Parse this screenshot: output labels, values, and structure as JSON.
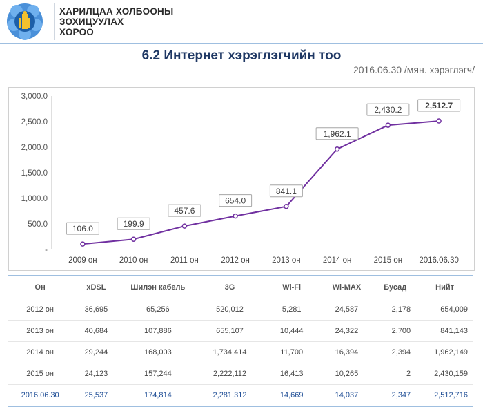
{
  "header": {
    "org_lines": [
      "ХАРИЛЦАА ХОЛБООНЫ",
      "ЗОХИЦУУЛАХ",
      "ХОРОО"
    ]
  },
  "title": "6.2 Интернет хэрэглэгчийн тоо",
  "subtitle": "2016.06.30 /мян. хэрэглэгч/",
  "colors": {
    "line": "#7030a0",
    "title": "#1f3864",
    "rule": "#9fbfe0",
    "last_row": "#1f4e96"
  },
  "chart_data": {
    "type": "line",
    "categories": [
      "2009 он",
      "2010 он",
      "2011 он",
      "2012 он",
      "2013 он",
      "2014 он",
      "2015 он",
      "2016.06.30"
    ],
    "values": [
      106.0,
      199.9,
      457.6,
      654.0,
      841.1,
      1962.1,
      2430.2,
      2512.7
    ],
    "labels": [
      "106.0",
      "199.9",
      "457.6",
      "654.0",
      "841.1",
      "1,962.1",
      "2,430.2",
      "2,512.7"
    ],
    "yticks": [
      "3,000.0",
      "2,500.0",
      "2,000.0",
      "1,500.0",
      "1,000.0",
      "500.0",
      "-"
    ],
    "ytick_values": [
      3000,
      2500,
      2000,
      1500,
      1000,
      500,
      0
    ],
    "ylim": [
      0,
      3000
    ],
    "grid": false
  },
  "table": {
    "headers": [
      "Он",
      "xDSL",
      "Шилэн кабель",
      "3G",
      "Wi-Fi",
      "Wi-MAX",
      "Бусад",
      "Нийт"
    ],
    "rows": [
      [
        "2012 он",
        "36,695",
        "65,256",
        "520,012",
        "5,281",
        "24,587",
        "2,178",
        "654,009"
      ],
      [
        "2013 он",
        "40,684",
        "107,886",
        "655,107",
        "10,444",
        "24,322",
        "2,700",
        "841,143"
      ],
      [
        "2014 он",
        "29,244",
        "168,003",
        "1,734,414",
        "11,700",
        "16,394",
        "2,394",
        "1,962,149"
      ],
      [
        "2015 он",
        "24,123",
        "157,244",
        "2,222,112",
        "16,413",
        "10,265",
        "2",
        "2,430,159"
      ],
      [
        "2016.06.30",
        "25,537",
        "174,814",
        "2,281,312",
        "14,669",
        "14,037",
        "2,347",
        "2,512,716"
      ]
    ]
  }
}
